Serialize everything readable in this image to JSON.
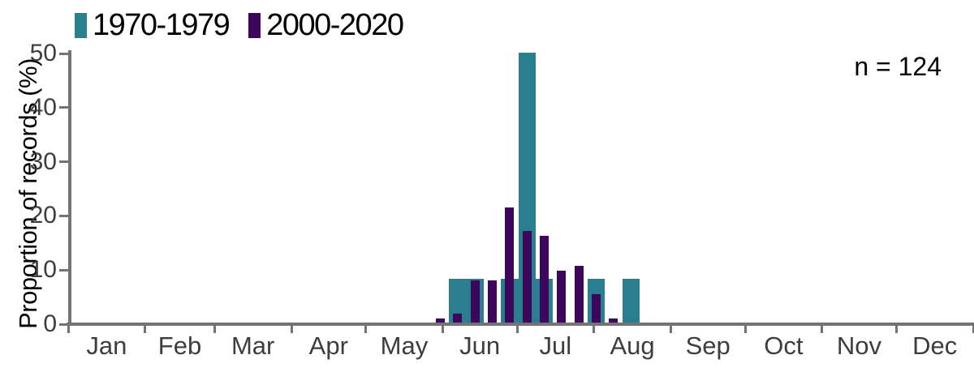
{
  "chart_data": {
    "type": "bar",
    "title": "",
    "ylabel": "Proportion of records (%)",
    "xlabel": "",
    "annotation": "n = 124",
    "y_axis": {
      "ticks": [
        0,
        10,
        20,
        30,
        40,
        50
      ],
      "range": [
        0,
        50
      ],
      "grid": false
    },
    "x_axis": {
      "month_labels": [
        "Jan",
        "Feb",
        "Mar",
        "Apr",
        "May",
        "Jun",
        "Jul",
        "Aug",
        "Sep",
        "Oct",
        "Nov",
        "Dec"
      ],
      "ticks_at": "month boundaries, Jan 1 through Dec 31",
      "range": [
        "Jan 1",
        "Dec 31"
      ]
    },
    "bin_width_days": 7,
    "bin_start_dates": [
      "May 27",
      "Jun 3",
      "Jun 10",
      "Jun 17",
      "Jun 24",
      "Jul 1",
      "Jul 8",
      "Jul 15",
      "Jul 22",
      "Jul 29",
      "Aug 5",
      "Aug 12"
    ],
    "series": [
      {
        "name": "1970-1979",
        "color": "#2a7f8e",
        "values": [
          0,
          8.3,
          8.3,
          0,
          8.3,
          50,
          8.3,
          0,
          0,
          8.3,
          0,
          8.3
        ]
      },
      {
        "name": "2000-2020",
        "color": "#3e055c",
        "values": [
          0.9,
          1.8,
          8.0,
          8.0,
          21.4,
          17.0,
          16.1,
          9.8,
          10.7,
          5.4,
          0.9,
          0
        ]
      }
    ],
    "legend_position": "top-left",
    "colors": {
      "axis_line": "#737373",
      "tick_label": "#3d3d3d",
      "text": "#000000",
      "background": "#ffffff"
    }
  }
}
